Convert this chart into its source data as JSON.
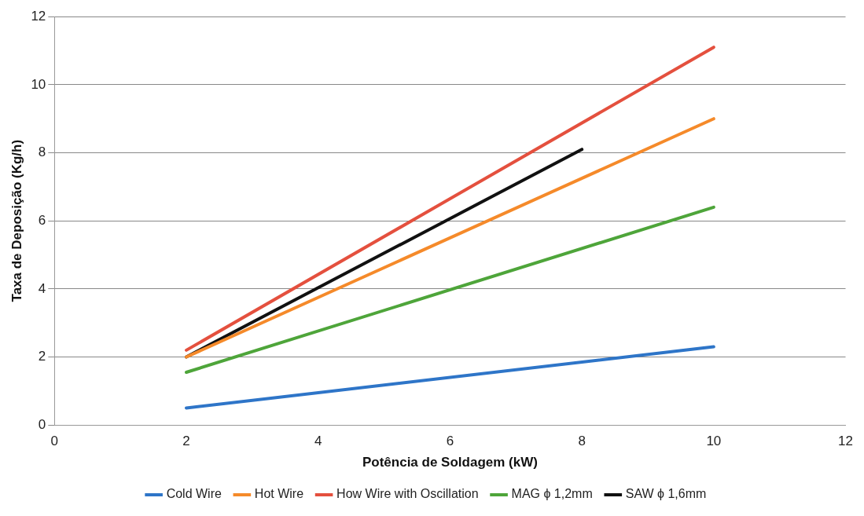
{
  "chart_data": {
    "type": "line",
    "xlabel": "Potência de Soldagem (kW)",
    "ylabel": "Taxa de Deposição (Kg/h)",
    "xlim": [
      0,
      12
    ],
    "xticks": [
      0,
      2,
      4,
      6,
      8,
      10,
      12
    ],
    "ylim": [
      0,
      12
    ],
    "yticks": [
      0,
      2,
      4,
      6,
      8,
      10,
      12
    ],
    "grid": "y",
    "legend": "bottom",
    "marker": "none",
    "series": [
      {
        "name": "Cold Wire",
        "color": "#2e75c8",
        "x": [
          2,
          10
        ],
        "values": [
          0.5,
          2.3
        ]
      },
      {
        "name": "Hot Wire",
        "color": "#f58a2a",
        "x": [
          2,
          10
        ],
        "values": [
          2.0,
          9.0
        ]
      },
      {
        "name": "How Wire with Oscillation",
        "color": "#e4503e",
        "x": [
          2,
          10
        ],
        "values": [
          2.2,
          11.1
        ]
      },
      {
        "name": "MAG ϕ 1,2mm",
        "color": "#4ea53a",
        "x": [
          2,
          10
        ],
        "values": [
          1.55,
          6.4
        ]
      },
      {
        "name": "SAW ϕ 1,6mm",
        "color": "#111111",
        "x": [
          2,
          8
        ],
        "values": [
          2.0,
          8.1
        ]
      }
    ]
  }
}
